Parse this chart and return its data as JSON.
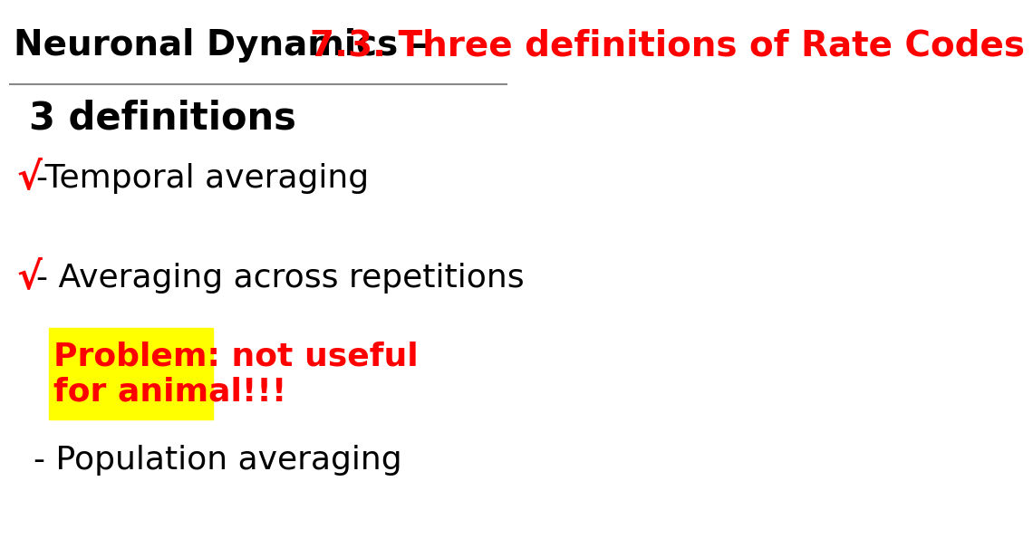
{
  "title_black": "Neuronal Dynamics – ",
  "title_red": "7.3. Three definitions of Rate Codes",
  "bg_color": "#ffffff",
  "header_line_color": "#888888",
  "section_title": "3 definitions",
  "items": [
    {
      "checkmark": true,
      "text": "-Temporal averaging"
    },
    {
      "checkmark": true,
      "text": "- Averaging across repetitions"
    },
    {
      "checkmark": false,
      "text": "- Population averaging"
    }
  ],
  "problem_box_text": "Problem: not useful\nfor animal!!!",
  "problem_box_color": "#ffff00",
  "problem_text_color": "#ff0000",
  "checkmark_color": "#ff0000",
  "title_fontsize": 28,
  "section_title_fontsize": 30,
  "item_fontsize": 26,
  "problem_fontsize": 26
}
